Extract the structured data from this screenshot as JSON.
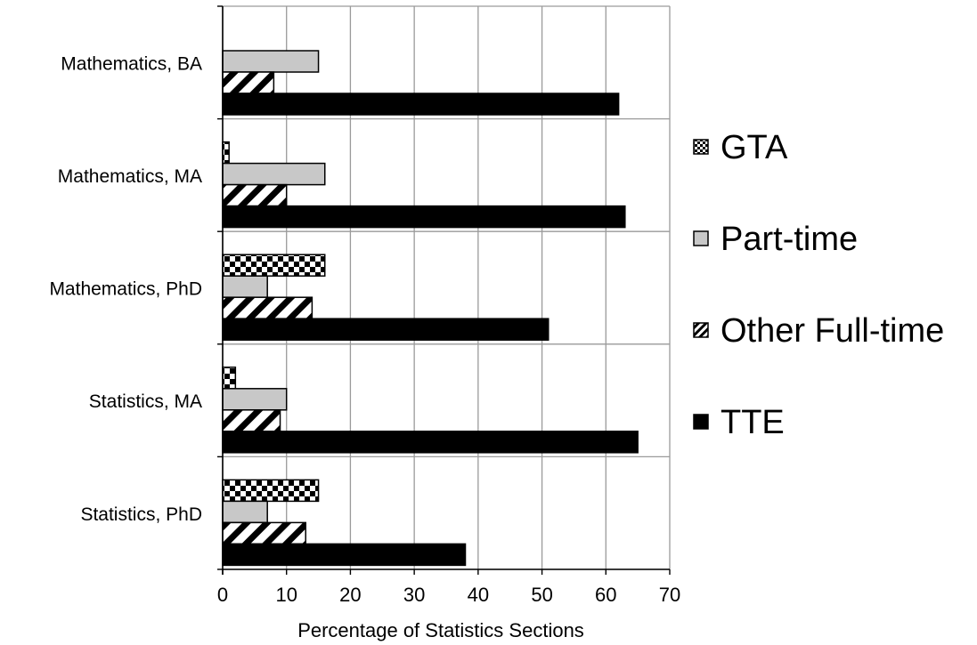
{
  "chart_data": {
    "type": "bar",
    "orientation": "horizontal",
    "title": "",
    "xlabel": "Percentage of Statistics Sections",
    "ylabel": "",
    "xlim": [
      0,
      70
    ],
    "x_ticks": [
      0,
      10,
      20,
      30,
      40,
      50,
      60,
      70
    ],
    "grid": true,
    "legend_position": "right",
    "categories": [
      "Mathematics, BA",
      "Mathematics, MA",
      "Mathematics, PhD",
      "Statistics, MA",
      "Statistics, PhD"
    ],
    "series": [
      {
        "name": "GTA",
        "pattern": "checkerboard",
        "color": "#000000",
        "values": [
          0,
          1,
          16,
          2,
          15
        ]
      },
      {
        "name": "Part-time",
        "pattern": "solid",
        "color": "#c8c8c8",
        "values": [
          15,
          16,
          7,
          10,
          7
        ]
      },
      {
        "name": "Other Full-time",
        "pattern": "diagonal-stripes",
        "color": "#000000",
        "values": [
          8,
          10,
          14,
          9,
          13
        ]
      },
      {
        "name": "TTE",
        "pattern": "solid",
        "color": "#000000",
        "values": [
          62,
          63,
          51,
          65,
          38
        ]
      }
    ]
  }
}
